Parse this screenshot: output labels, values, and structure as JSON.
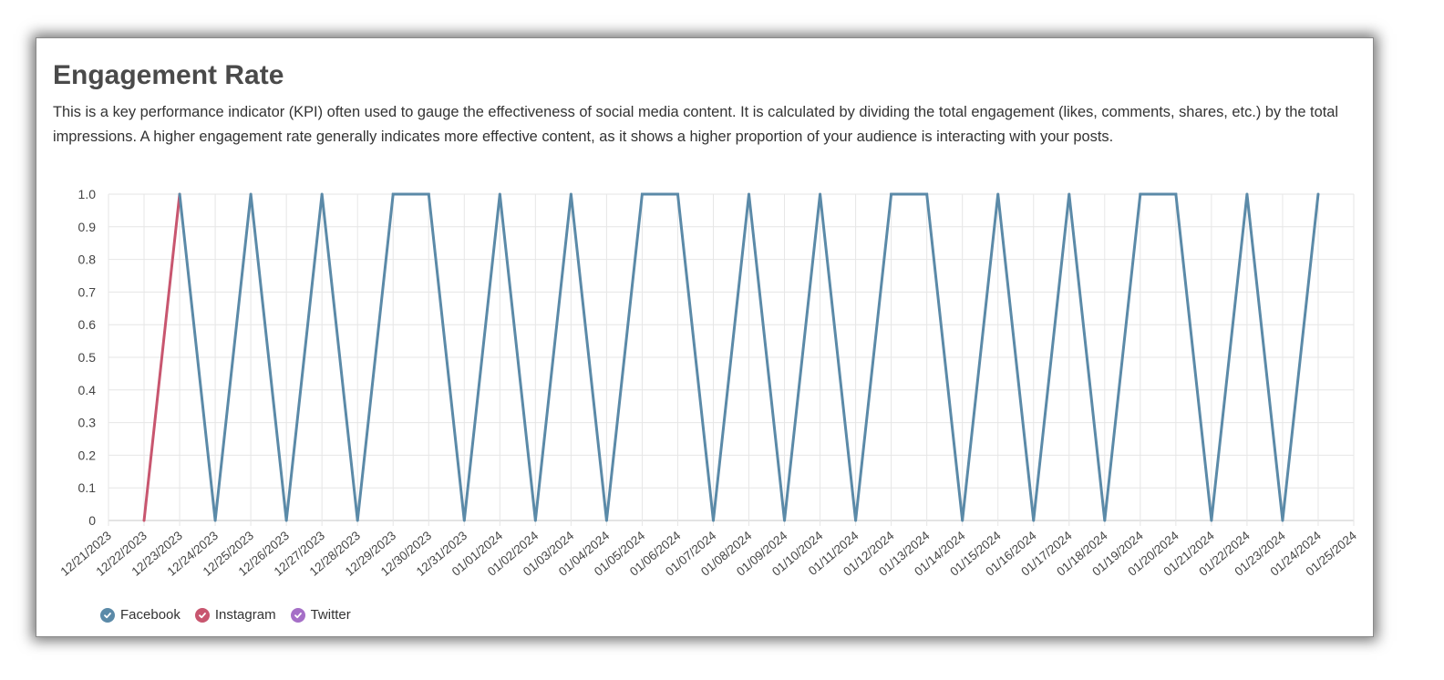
{
  "card": {
    "title": "Engagement Rate",
    "description": "This is a key performance indicator (KPI) often used to gauge the effectiveness of social media content. It is calculated by dividing the total engagement (likes, comments, shares, etc.) by the total impressions. A higher engagement rate generally indicates more effective content, as it shows a higher proportion of your audience is interacting with your posts."
  },
  "chart_data": {
    "type": "line",
    "title": "",
    "xlabel": "",
    "ylabel": "",
    "ylim": [
      0,
      1
    ],
    "yticks": [
      "0",
      "0.1",
      "0.2",
      "0.3",
      "0.4",
      "0.5",
      "0.6",
      "0.7",
      "0.8",
      "0.9",
      "1.0"
    ],
    "grid": true,
    "legend_position": "bottom-left",
    "categories": [
      "12/21/2023",
      "12/22/2023",
      "12/23/2023",
      "12/24/2023",
      "12/25/2023",
      "12/26/2023",
      "12/27/2023",
      "12/28/2023",
      "12/29/2023",
      "12/30/2023",
      "12/31/2023",
      "01/01/2024",
      "01/02/2024",
      "01/03/2024",
      "01/04/2024",
      "01/05/2024",
      "01/06/2024",
      "01/07/2024",
      "01/08/2024",
      "01/09/2024",
      "01/10/2024",
      "01/11/2024",
      "01/12/2024",
      "01/13/2024",
      "01/14/2024",
      "01/15/2024",
      "01/16/2024",
      "01/17/2024",
      "01/18/2024",
      "01/19/2024",
      "01/20/2024",
      "01/21/2024",
      "01/22/2024",
      "01/23/2024",
      "01/24/2024",
      "01/25/2024"
    ],
    "series": [
      {
        "name": "Facebook",
        "color": "#5b8aa8",
        "x": [
          "12/23/2023",
          "12/24/2023",
          "12/25/2023",
          "12/26/2023",
          "12/27/2023",
          "12/28/2023",
          "12/29/2023",
          "12/30/2023",
          "12/31/2023",
          "01/01/2024",
          "01/02/2024",
          "01/03/2024",
          "01/04/2024",
          "01/05/2024",
          "01/06/2024",
          "01/07/2024",
          "01/08/2024",
          "01/09/2024",
          "01/10/2024",
          "01/11/2024",
          "01/12/2024",
          "01/13/2024",
          "01/14/2024",
          "01/15/2024",
          "01/16/2024",
          "01/17/2024",
          "01/18/2024",
          "01/19/2024",
          "01/20/2024",
          "01/21/2024",
          "01/22/2024",
          "01/23/2024",
          "01/24/2024"
        ],
        "values": [
          1,
          0,
          1,
          0,
          1,
          0,
          1,
          1,
          0,
          1,
          0,
          1,
          0,
          1,
          1,
          0,
          1,
          0,
          1,
          0,
          1,
          1,
          0,
          1,
          0,
          1,
          0,
          1,
          1,
          0,
          1,
          0,
          1
        ]
      },
      {
        "name": "Instagram",
        "color": "#c8566f",
        "x": [
          "12/22/2023",
          "12/23/2023"
        ],
        "values": [
          0,
          1
        ]
      },
      {
        "name": "Twitter",
        "color": "#a56fc7",
        "x": [],
        "values": []
      }
    ]
  },
  "legend": {
    "items": [
      {
        "label": "Facebook",
        "color": "#5b8aa8"
      },
      {
        "label": "Instagram",
        "color": "#c8566f"
      },
      {
        "label": "Twitter",
        "color": "#a56fc7"
      }
    ]
  }
}
